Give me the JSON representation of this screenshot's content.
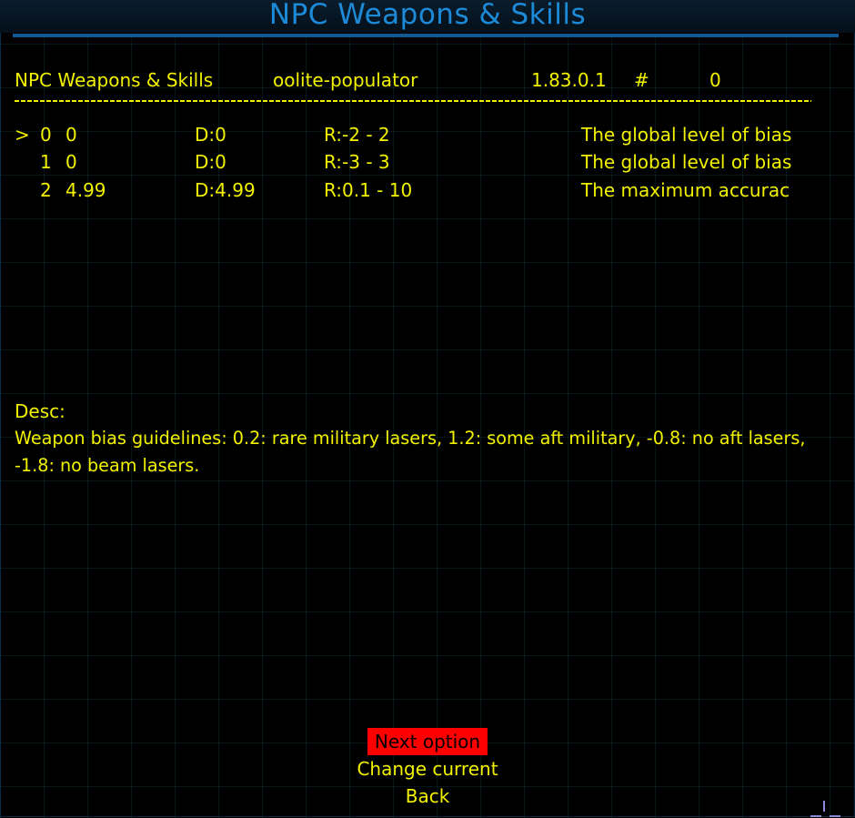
{
  "title": "NPC Weapons & Skills",
  "header": {
    "name": "NPC Weapons & Skills",
    "author": "oolite-populator",
    "version": "1.83.0.1",
    "hash": "#",
    "index": "0"
  },
  "rows": [
    {
      "cursor": ">",
      "num": "0",
      "value": "0",
      "default": "D:0",
      "range": "R:-2 - 2",
      "desc": "The global level of bias"
    },
    {
      "cursor": "",
      "num": "1",
      "value": "0",
      "default": "D:0",
      "range": "R:-3 - 3",
      "desc": "The global level of bias"
    },
    {
      "cursor": "",
      "num": "2",
      "value": "4.99",
      "default": "D:4.99",
      "range": "R:0.1 - 10",
      "desc": "The maximum accurac"
    }
  ],
  "desc": {
    "label": "Desc:",
    "line1": "Weapon bias guidelines: 0.2: rare military lasers, 1.2: some aft military, -0.8: no aft lasers,",
    "line2": "-1.8: no beam lasers."
  },
  "menu": {
    "next": "Next option",
    "change": "Change current",
    "back": "Back"
  },
  "colors": {
    "text": "#f2f200",
    "title": "#1d8ad8",
    "highlight": "#ff0000"
  }
}
